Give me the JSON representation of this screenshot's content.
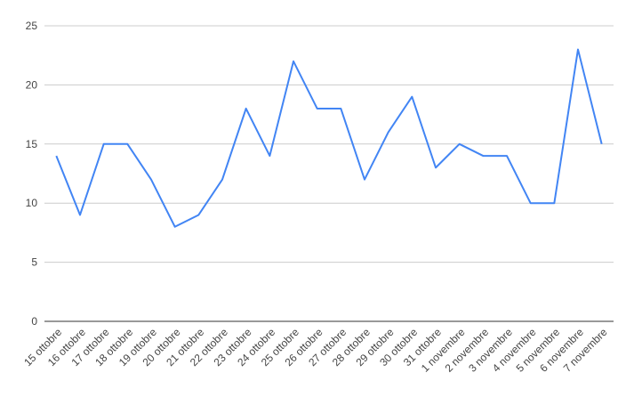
{
  "chart_data": {
    "type": "line",
    "categories": [
      "15 ottobre",
      "16 ottobre",
      "17 ottobre",
      "18 ottobre",
      "19 ottobre",
      "20 ottobre",
      "21 ottobre",
      "22 ottobre",
      "23 ottobre",
      "24 ottobre",
      "25 ottobre",
      "26 ottobre",
      "27 ottobre",
      "28 ottobre",
      "29 ottobre",
      "30 ottobre",
      "31 ottobre",
      "1 novembre",
      "2 novembre",
      "3 novembre",
      "4 novembre",
      "5 novembre",
      "6 novembre",
      "7 novembre"
    ],
    "values": [
      14,
      9,
      15,
      15,
      12,
      8,
      9,
      12,
      18,
      14,
      22,
      18,
      18,
      12,
      16,
      19,
      13,
      15,
      14,
      14,
      10,
      10,
      23,
      15
    ],
    "color": "#4285f4",
    "ylim": [
      0,
      25
    ],
    "yticks": [
      0,
      5,
      10,
      15,
      20,
      25
    ],
    "grid": true
  }
}
